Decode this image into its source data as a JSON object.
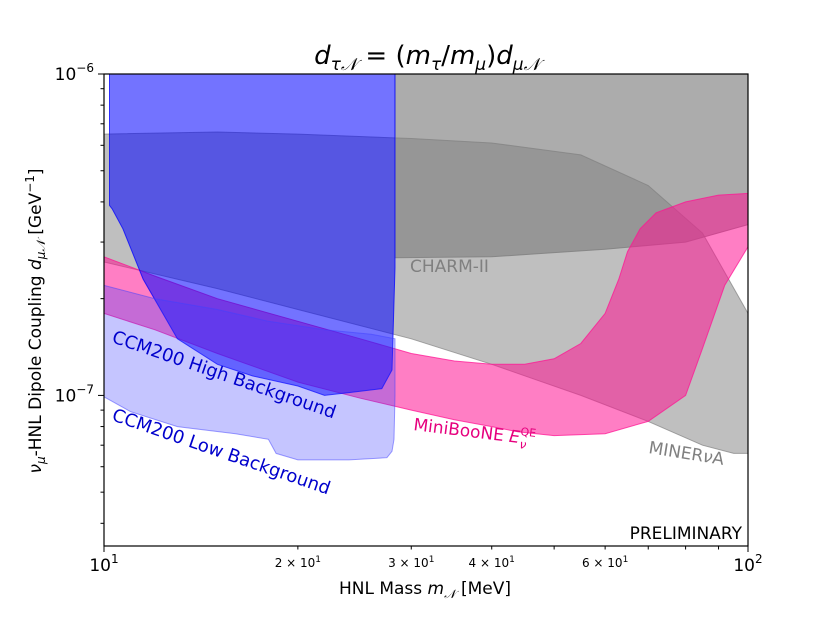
{
  "chart_data": {
    "type": "area",
    "title": "d_{τ𝒩} = (m_τ/m_μ) d_{μ𝒩}",
    "xlabel": "HNL Mass m_𝒩 [MeV]",
    "ylabel": "ν_μ-HNL Dipole Coupling d_{μ𝒩} [GeV^{-1}]",
    "xscale": "log",
    "yscale": "log",
    "xlim": [
      10,
      100
    ],
    "ylim": [
      3.4e-08,
      1e-06
    ],
    "grid": false,
    "x_ticks_major": [
      {
        "value": 10,
        "base": "10",
        "exp": "1"
      },
      {
        "value": 100,
        "base": "10",
        "exp": "2"
      }
    ],
    "x_ticks_minor": [
      {
        "value": 20,
        "mant": "2",
        "base": "10",
        "exp": "1"
      },
      {
        "value": 30,
        "mant": "3",
        "base": "10",
        "exp": "1"
      },
      {
        "value": 40,
        "mant": "4",
        "base": "10",
        "exp": "1"
      },
      {
        "value": 60,
        "mant": "6",
        "base": "10",
        "exp": "1"
      }
    ],
    "y_ticks_major": [
      {
        "value": 1e-07,
        "base": "10",
        "exp": "−7"
      },
      {
        "value": 1e-06,
        "base": "10",
        "exp": "−6"
      }
    ],
    "watermark": "PRELIMINARY",
    "regions": [
      {
        "name": "MINERvA",
        "label": "MINERνA",
        "color": "#808080",
        "opacity": 0.5,
        "boundary": [
          [
            10,
            6.5e-07
          ],
          [
            15,
            6.6e-07
          ],
          [
            20,
            6.5e-07
          ],
          [
            30,
            6.3e-07
          ],
          [
            40,
            6.1e-07
          ],
          [
            55,
            5.6e-07
          ],
          [
            70,
            4.5e-07
          ],
          [
            85,
            3.2e-07
          ],
          [
            100,
            1.8e-07
          ],
          [
            100,
            6.6e-08
          ],
          [
            95,
            6.6e-08
          ],
          [
            85,
            7e-08
          ],
          [
            70,
            8.3e-08
          ],
          [
            55,
            1e-07
          ],
          [
            40,
            1.25e-07
          ],
          [
            30,
            1.5e-07
          ],
          [
            20,
            1.85e-07
          ],
          [
            15,
            2.15e-07
          ],
          [
            10,
            2.6e-07
          ]
        ]
      },
      {
        "name": "CHARM-II",
        "label": "CHARM-II",
        "color": "#808080",
        "opacity": 0.65,
        "boundary": [
          [
            28.3,
            1e-06
          ],
          [
            100,
            1e-06
          ],
          [
            100,
            3.4e-07
          ],
          [
            80,
            3e-07
          ],
          [
            60,
            2.85e-07
          ],
          [
            40,
            2.7e-07
          ],
          [
            28.3,
            2.68e-07
          ]
        ]
      },
      {
        "name": "MiniBooNE",
        "label": "MiniBooNE E_ν^{QE}",
        "color": "#ff1493",
        "opacity": 0.55,
        "boundary": [
          [
            10,
            2.7e-07
          ],
          [
            12,
            2.35e-07
          ],
          [
            15,
            2e-07
          ],
          [
            20,
            1.7e-07
          ],
          [
            25,
            1.5e-07
          ],
          [
            30,
            1.35e-07
          ],
          [
            35,
            1.28e-07
          ],
          [
            40,
            1.25e-07
          ],
          [
            45,
            1.25e-07
          ],
          [
            50,
            1.3e-07
          ],
          [
            55,
            1.45e-07
          ],
          [
            60,
            1.8e-07
          ],
          [
            63,
            2.3e-07
          ],
          [
            65,
            2.8e-07
          ],
          [
            68,
            3.3e-07
          ],
          [
            72,
            3.7e-07
          ],
          [
            80,
            4e-07
          ],
          [
            90,
            4.2e-07
          ],
          [
            100,
            4.25e-07
          ],
          [
            100,
            2.9e-07
          ],
          [
            92,
            2.2e-07
          ],
          [
            85,
            1.4e-07
          ],
          [
            80,
            1e-07
          ],
          [
            70,
            8.3e-08
          ],
          [
            60,
            7.6e-08
          ],
          [
            50,
            7.5e-08
          ],
          [
            44,
            7.7e-08
          ],
          [
            40,
            8e-08
          ],
          [
            35,
            8.4e-08
          ],
          [
            30,
            9e-08
          ],
          [
            25,
            9.8e-08
          ],
          [
            20,
            1.1e-07
          ],
          [
            15,
            1.35e-07
          ],
          [
            12,
            1.6e-07
          ],
          [
            10,
            1.8e-07
          ]
        ]
      },
      {
        "name": "CCM200 High Background",
        "label": "CCM200 High Background",
        "color": "#0000ff",
        "opacity": 0.55,
        "boundary": [
          [
            10.2,
            1e-06
          ],
          [
            28.3,
            1e-06
          ],
          [
            28.3,
            2.5e-07
          ],
          [
            28,
            1.2e-07
          ],
          [
            27,
            1.05e-07
          ],
          [
            24,
            1.02e-07
          ],
          [
            22,
            1e-07
          ],
          [
            20,
            1.07e-07
          ],
          [
            17,
            1.15e-07
          ],
          [
            15,
            1.25e-07
          ],
          [
            13,
            1.5e-07
          ],
          [
            11.5,
            2.3e-07
          ],
          [
            10.7,
            3.3e-07
          ],
          [
            10.3,
            3.8e-07
          ],
          [
            10.2,
            3.9e-07
          ]
        ]
      },
      {
        "name": "CCM200 Low Background",
        "label": "CCM200 Low Background",
        "color": "#4040ff",
        "opacity": 0.3,
        "boundary": [
          [
            10,
            2.2e-07
          ],
          [
            12,
            2e-07
          ],
          [
            15,
            1.85e-07
          ],
          [
            18,
            1.7e-07
          ],
          [
            22,
            1.6e-07
          ],
          [
            26,
            1.55e-07
          ],
          [
            28.3,
            1.5e-07
          ],
          [
            28.3,
            1e-07
          ],
          [
            28.2,
            7.3e-08
          ],
          [
            28,
            6.7e-08
          ],
          [
            27.5,
            6.4e-08
          ],
          [
            24,
            6.3e-08
          ],
          [
            20,
            6.3e-08
          ],
          [
            18.5,
            6.6e-08
          ],
          [
            18,
            7.3e-08
          ],
          [
            16,
            7.6e-08
          ],
          [
            13,
            8e-08
          ],
          [
            11,
            8.9e-08
          ],
          [
            10,
            9.9e-08
          ]
        ]
      }
    ]
  }
}
